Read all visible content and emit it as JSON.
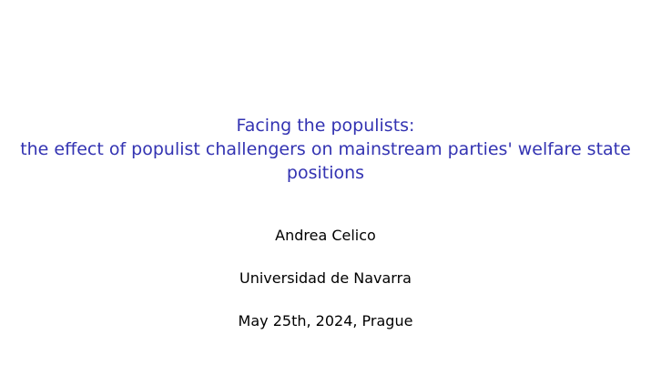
{
  "slide": {
    "title": {
      "line1": "Facing the populists:",
      "line2": "the effect of populist challengers on mainstream parties' welfare state",
      "line3": "positions"
    },
    "author": "Andrea Celico",
    "institute": "Universidad de Navarra",
    "date": "May 25th, 2024, Prague"
  },
  "colors": {
    "title": "#3333b2",
    "text": "#000000",
    "background": "#ffffff"
  }
}
